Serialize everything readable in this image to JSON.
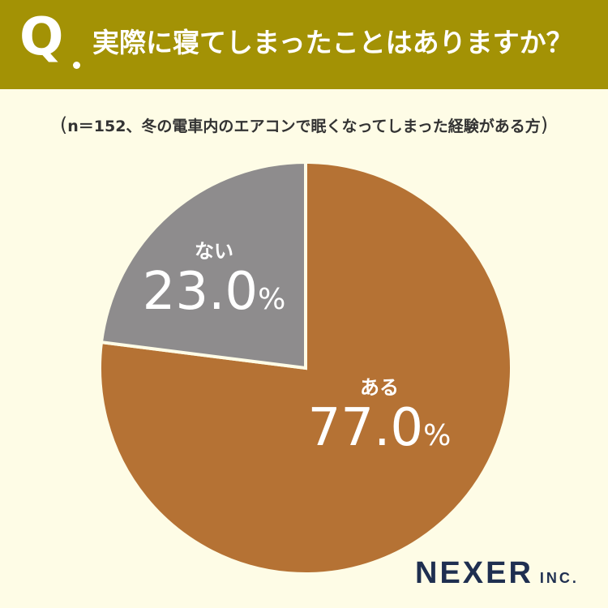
{
  "header": {
    "q_mark": "Q",
    "question": "実際に寝てしまったことはありますか？"
  },
  "subtitle": {
    "open_paren": "(",
    "text": "n＝152、冬の電車内のエアコンで眠くなってしまった経験がある方",
    "close_paren": ")"
  },
  "chart_data": {
    "type": "pie",
    "slices": [
      {
        "label": "ある",
        "value": 77.0,
        "value_text": "77.0",
        "unit": "%",
        "color": "#b57234"
      },
      {
        "label": "ない",
        "value": 23.0,
        "value_text": "23.0",
        "unit": "%",
        "color": "#8e8c8d"
      }
    ],
    "start": "12 o'clock",
    "direction": "clockwise",
    "legend": "none"
  },
  "colors": {
    "header_bg": "#a39205",
    "background": "#fefce6",
    "separator": "#fefce6",
    "logo": "#1f2f50"
  },
  "logo": {
    "main": "NEXER",
    "suffix": "INC."
  }
}
